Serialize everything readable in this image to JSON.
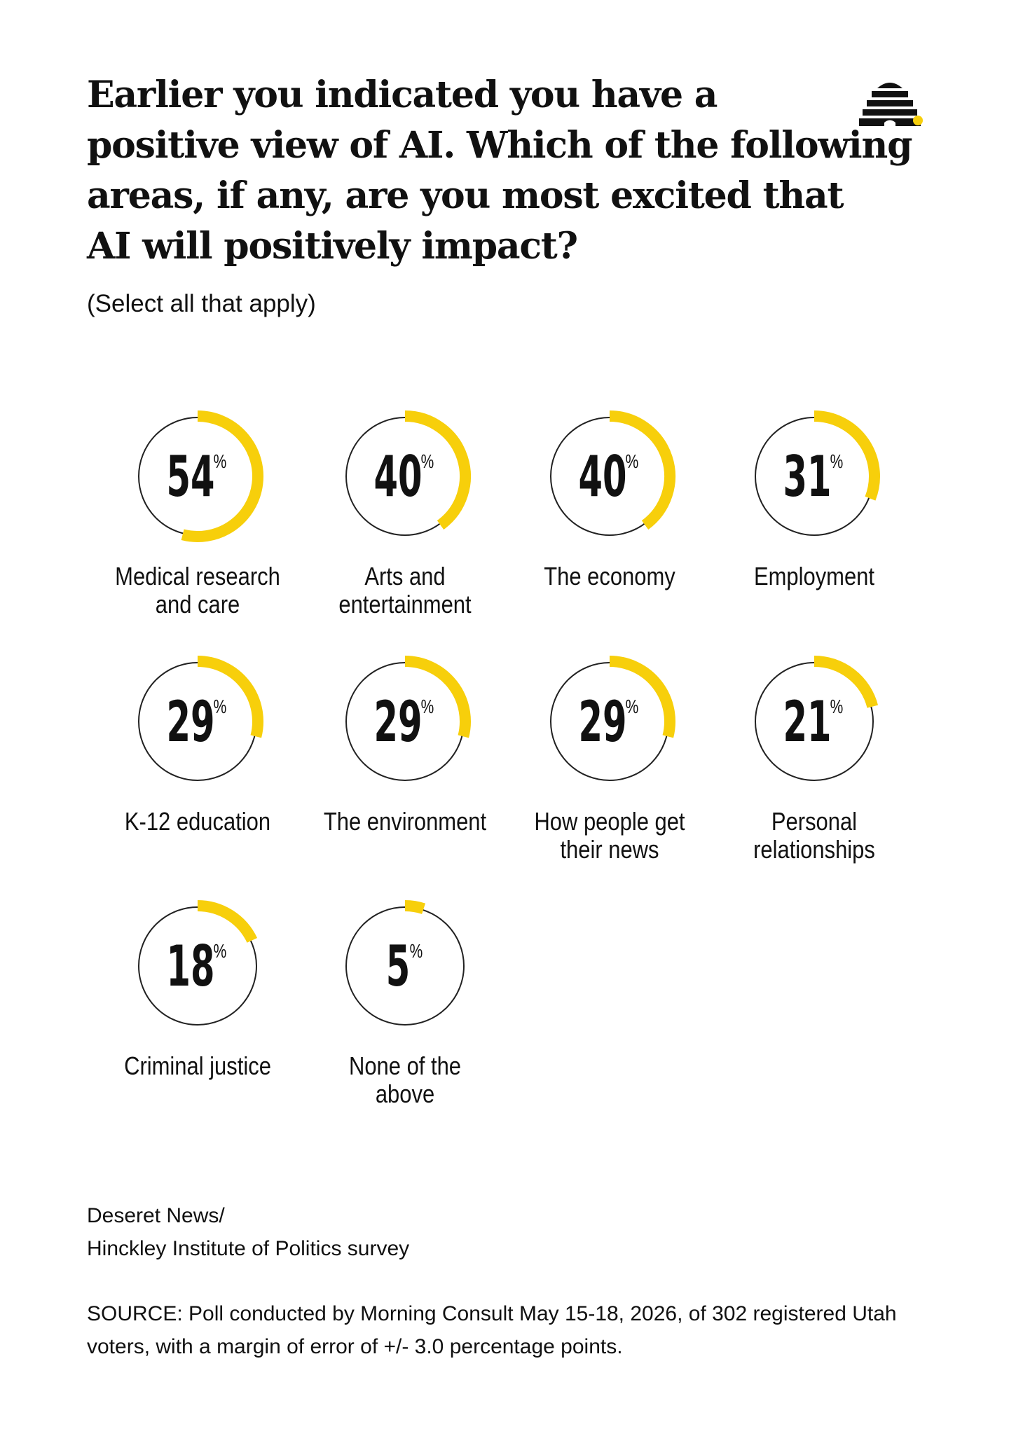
{
  "header": {
    "title_lines": [
      "Earlier you indicated you have a",
      "positive view of AI. Which of the following",
      "areas, if any, are you most excited that",
      "AI will positively impact?"
    ],
    "subtitle": "(Select all that apply)"
  },
  "logo": {
    "icon": "beehive-icon",
    "colors": {
      "hive": "#111111",
      "dot": "#f7cf0b"
    }
  },
  "colors": {
    "accent": "#f7cf0b",
    "ring": "#222222",
    "text": "#111111"
  },
  "chart_data": {
    "type": "radial-progress",
    "unit": "%",
    "items": [
      {
        "label_lines": [
          "Medical research",
          "and care"
        ],
        "value": 54
      },
      {
        "label_lines": [
          "Arts and",
          "entertainment"
        ],
        "value": 40
      },
      {
        "label_lines": [
          "The economy"
        ],
        "value": 40
      },
      {
        "label_lines": [
          "Employment"
        ],
        "value": 31
      },
      {
        "label_lines": [
          "K-12 education"
        ],
        "value": 29
      },
      {
        "label_lines": [
          "The environment"
        ],
        "value": 29
      },
      {
        "label_lines": [
          "How people get",
          "their news"
        ],
        "value": 29
      },
      {
        "label_lines": [
          "Personal",
          "relationships"
        ],
        "value": 21
      },
      {
        "label_lines": [
          "Criminal justice"
        ],
        "value": 18
      },
      {
        "label_lines": [
          "None of the",
          "above"
        ],
        "value": 5
      }
    ]
  },
  "footer": {
    "credit_lines": [
      "Deseret News/",
      "Hinckley Institute of Politics survey"
    ],
    "source": "SOURCE: Poll conducted by Morning Consult May 15-18, 2026, of 302 registered Utah voters, with a margin of error of +/- 3.0 percentage points."
  }
}
